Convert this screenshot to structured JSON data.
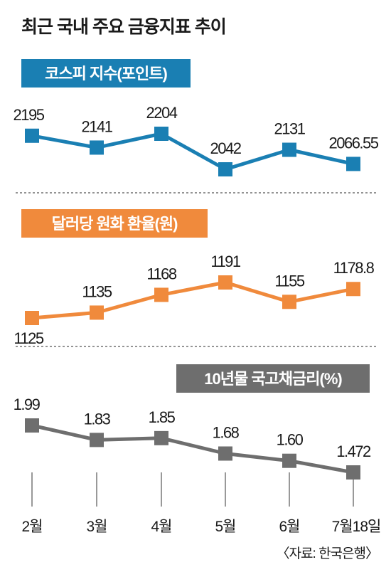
{
  "title": "최근 국내 주요 금융지표 추이",
  "source": "〈자료: 한국은행〉",
  "chart_data": [
    {
      "type": "line",
      "title": "코스피 지수(포인트)",
      "categories": [
        "2월",
        "3월",
        "4월",
        "5월",
        "6월",
        "7월18일"
      ],
      "values": [
        2195,
        2141,
        2204,
        2042,
        2131,
        2066.55
      ],
      "value_labels": [
        "2195",
        "2141",
        "2204",
        "2042",
        "2131",
        "2066.55"
      ],
      "color": "#1a7fb3",
      "grid": false
    },
    {
      "type": "line",
      "title": "달러당 원화 환율(원)",
      "categories": [
        "2월",
        "3월",
        "4월",
        "5월",
        "6월",
        "7월18일"
      ],
      "values": [
        1125,
        1135,
        1168,
        1191,
        1155,
        1178.8
      ],
      "value_labels": [
        "1125",
        "1135",
        "1168",
        "1191",
        "1155",
        "1178.8"
      ],
      "color": "#f08a3c",
      "grid": false
    },
    {
      "type": "line",
      "title": "10년물 국고채금리(%)",
      "categories": [
        "2월",
        "3월",
        "4월",
        "5월",
        "6월",
        "7월18일"
      ],
      "values": [
        1.99,
        1.83,
        1.85,
        1.68,
        1.6,
        1.472
      ],
      "value_labels": [
        "1.99",
        "1.83",
        "1.85",
        "1.68",
        "1.60",
        "1.472"
      ],
      "color": "#6e6e6e",
      "grid": false
    }
  ]
}
